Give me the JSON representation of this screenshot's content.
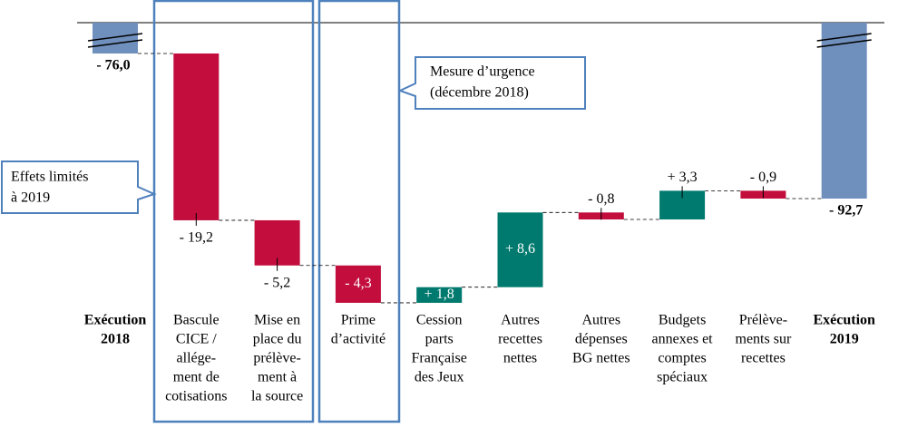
{
  "chart_data": {
    "type": "waterfall",
    "categories": [
      [
        "Exécution",
        "2018"
      ],
      [
        "Bascule",
        "CICE /",
        "allége-",
        "ment de",
        "cotisations"
      ],
      [
        "Mise en",
        "place du",
        "prélève-",
        "ment à",
        "la source"
      ],
      [
        "Prime",
        "d’activité"
      ],
      [
        "Cession",
        "parts",
        "Française",
        "des Jeux"
      ],
      [
        "Autres",
        "recettes",
        "nettes"
      ],
      [
        "Autres",
        "dépenses",
        "BG nettes"
      ],
      [
        "Budgets",
        "annexes et",
        "comptes",
        "spéciaux"
      ],
      [
        "Prélève-",
        "ments sur",
        "recettes"
      ],
      [
        "Exécution",
        "2019"
      ]
    ],
    "values": [
      -76.0,
      -19.2,
      -5.2,
      -4.3,
      1.8,
      8.6,
      -0.8,
      3.3,
      -0.9,
      -92.7
    ],
    "value_labels": [
      "- 76,0",
      "- 19,2",
      "- 5,2",
      "- 4,3",
      "+ 1,8",
      "+ 8,6",
      "- 0,8",
      "+ 3,3",
      "- 0,9",
      "- 92,7"
    ],
    "colors": {
      "total": "#6f8fbd",
      "decrease": "#c20d3d",
      "increase": "#007a6e"
    },
    "annotations": [
      {
        "lines": [
          "Mesure d’urgence",
          "(décembre 2018)"
        ]
      },
      {
        "lines": [
          "Effets limités",
          "à 2019"
        ]
      }
    ]
  }
}
